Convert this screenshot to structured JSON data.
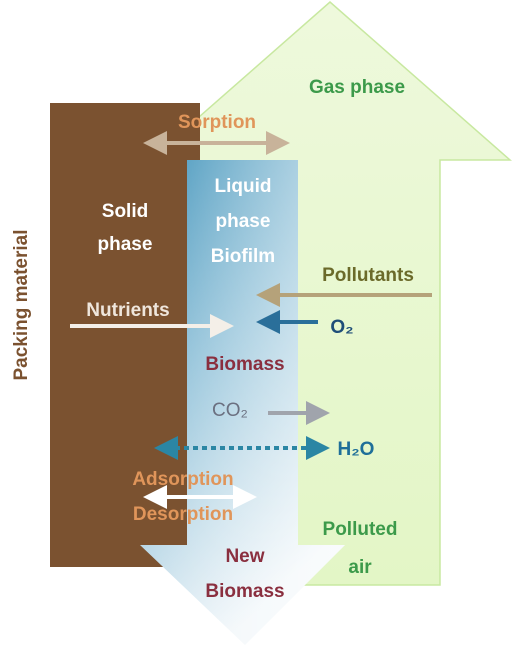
{
  "diagram": {
    "gas_phase": "Gas phase",
    "sorption": "Sorption",
    "solid_phase": [
      "Solid",
      "phase"
    ],
    "liquid_phase": [
      "Liquid",
      "phase",
      "Biofilm"
    ],
    "packing_material": "Packing material",
    "pollutants": "Pollutants",
    "nutrients": "Nutrients",
    "oxygen": "O₂",
    "biomass": "Biomass",
    "carbon_dioxide": "CO₂",
    "water": "H₂O",
    "adsorption": "Adsorption",
    "desorption": "Desorption",
    "polluted_air": [
      "Polluted",
      "air"
    ],
    "new_biomass": [
      "New",
      "Biomass"
    ]
  }
}
